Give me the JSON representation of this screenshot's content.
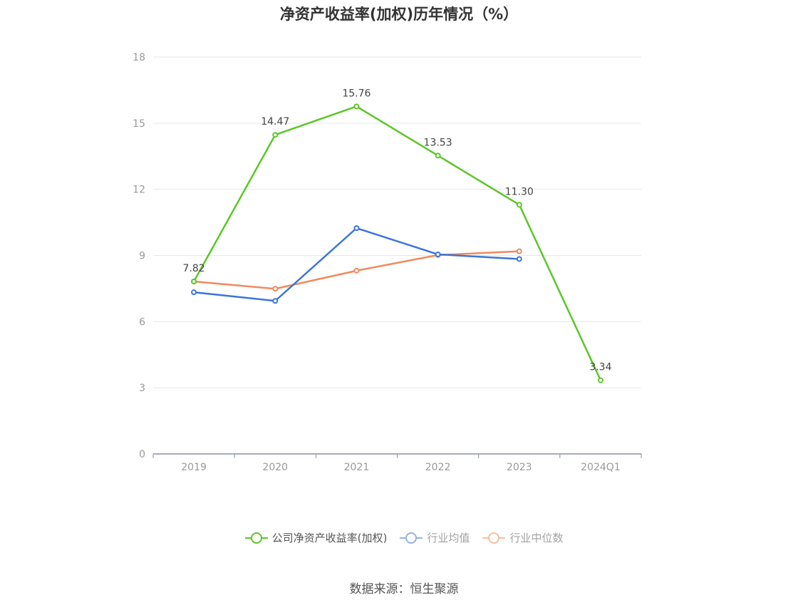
{
  "chart_data": {
    "type": "line",
    "title": "净资产收益率(加权)历年情况（%）",
    "categories": [
      "2019",
      "2020",
      "2021",
      "2022",
      "2023",
      "2024Q1"
    ],
    "ylim": [
      0,
      18
    ],
    "yticks": [
      0,
      3,
      6,
      9,
      12,
      15,
      18
    ],
    "grid": true,
    "legend_position": "bottom",
    "series": [
      {
        "name": "公司净资产收益率(加权)",
        "color": "#5bc629",
        "values": [
          7.82,
          14.47,
          15.76,
          13.53,
          11.3,
          3.34
        ],
        "labels": [
          "7.82",
          "14.47",
          "15.76",
          "13.53",
          "11.30",
          "3.34"
        ]
      },
      {
        "name": "行业均值",
        "color": "#3a75d9",
        "values": [
          7.33,
          6.94,
          10.24,
          9.05,
          8.84,
          null
        ]
      },
      {
        "name": "行业中位数",
        "color": "#f08a5d",
        "values": [
          7.82,
          7.49,
          8.31,
          9.02,
          9.19,
          null
        ]
      }
    ]
  },
  "source_text": "数据来源：恒生聚源"
}
